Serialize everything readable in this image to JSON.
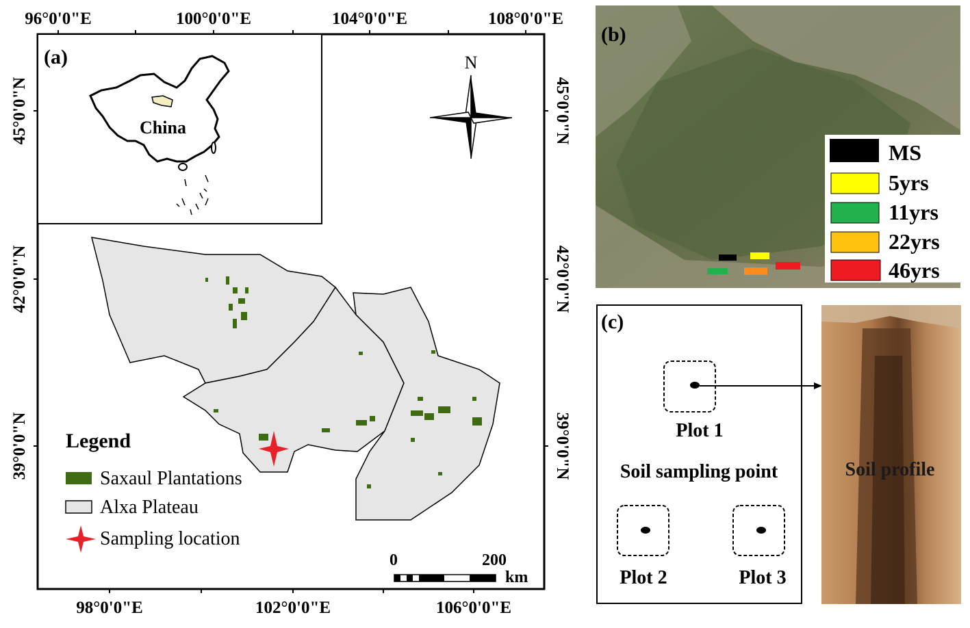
{
  "panel_a": {
    "label": "(a)",
    "top_lon_labels": [
      "96°0'0\"E",
      "100°0'0\"E",
      "104°0'0\"E",
      "108°0'0\"E"
    ],
    "bottom_lon_labels": [
      "98°0'0\"E",
      "102°0'0\"E",
      "106°0'0\"E"
    ],
    "lat_labels": [
      "45°0'0\"N",
      "42°0'0\"N",
      "39°0'0\"N"
    ],
    "inset_label": "China",
    "north_label": "N",
    "legend": {
      "title": "Legend",
      "items": [
        {
          "label": "Saxaul Plantations",
          "color": "#3f6b12"
        },
        {
          "label": "Alxa Plateau",
          "color": "#e6e6e6"
        },
        {
          "label": "Sampling location",
          "color": "#e8202a"
        }
      ]
    },
    "scale_bar": {
      "zero": "0",
      "max": "200",
      "unit": "km"
    }
  },
  "panel_b": {
    "label": "(b)",
    "legend": [
      {
        "label": "MS",
        "color": "#000000"
      },
      {
        "label": "5yrs",
        "color": "#ffff00"
      },
      {
        "label": "11yrs",
        "color": "#22b14c"
      },
      {
        "label": "22yrs",
        "color": "#ffc20e"
      },
      {
        "label": "46yrs",
        "color": "#ed1c24"
      }
    ]
  },
  "panel_c": {
    "label": "(c)",
    "plots": [
      "Plot 1",
      "Plot 2",
      "Plot 3"
    ],
    "caption": "Soil sampling point",
    "profile_label": "Soil profile"
  }
}
